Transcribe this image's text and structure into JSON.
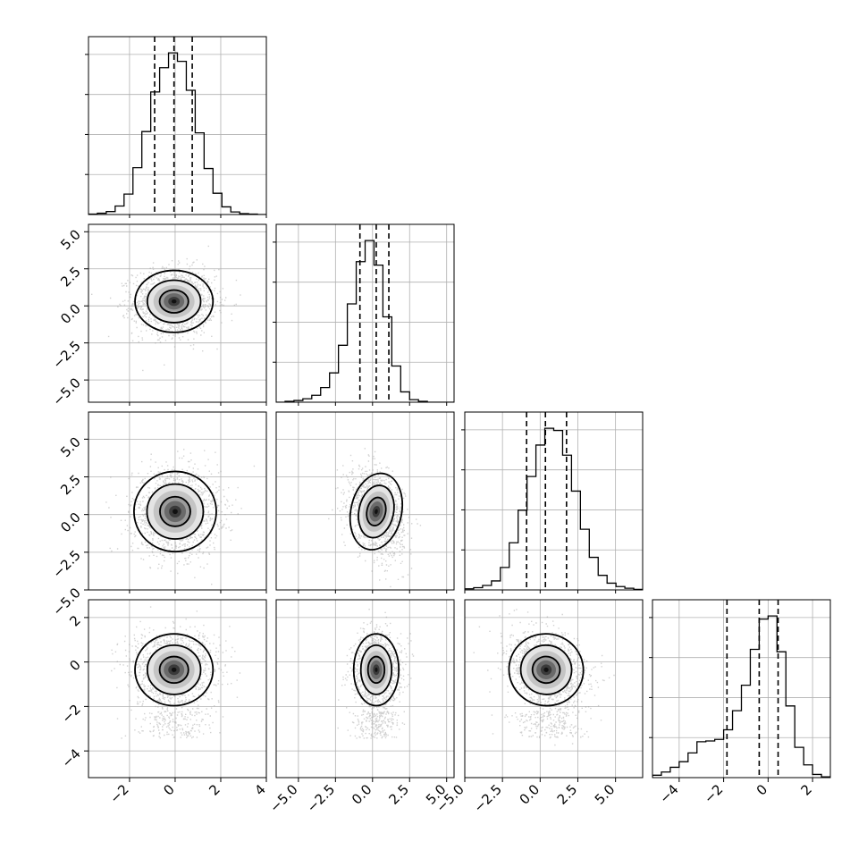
{
  "chart_data": {
    "type": "corner",
    "n_params": 4,
    "ranges": [
      [
        -3.8,
        4.0
      ],
      [
        -6.5,
        5.5
      ],
      [
        -5.0,
        6.8
      ],
      [
        -5.2,
        2.8
      ]
    ],
    "ticks": [
      {
        "values": [
          -2,
          0,
          2,
          4
        ],
        "labels": [
          "−2",
          "0",
          "2",
          "4"
        ]
      },
      {
        "values": [
          -5,
          -2.5,
          0,
          2.5,
          5
        ],
        "labels": [
          "−5.0",
          "−2.5",
          "0.0",
          "2.5",
          "5.0"
        ]
      },
      {
        "values": [
          -5,
          -2.5,
          0,
          2.5,
          5
        ],
        "labels": [
          "−5.0",
          "−2.5",
          "0.0",
          "2.5",
          "5.0"
        ]
      },
      {
        "values": [
          -4,
          -2,
          0,
          2
        ],
        "labels": [
          "−4",
          "−2",
          "0",
          "2"
        ]
      }
    ],
    "quantiles": [
      [
        -0.9,
        -0.05,
        0.75
      ],
      [
        -0.85,
        0.25,
        1.1
      ],
      [
        -0.9,
        0.35,
        1.75
      ],
      [
        -1.85,
        -0.4,
        0.45
      ]
    ],
    "histograms": [
      {
        "edges_from": -3.8,
        "edges_to": 4.0,
        "counts": [
          1,
          3,
          7,
          20,
          48,
          110,
          195,
          288,
          345,
          380,
          360,
          292,
          192,
          108,
          50,
          18,
          6,
          2,
          1,
          0
        ]
      },
      {
        "edges_from": -6.5,
        "edges_to": 5.5,
        "counts": [
          0,
          2,
          4,
          8,
          16,
          34,
          68,
          132,
          228,
          326,
          375,
          318,
          198,
          84,
          24,
          6,
          2,
          0,
          0,
          0
        ]
      },
      {
        "edges_from": -5.0,
        "edges_to": 6.8,
        "counts": [
          2,
          4,
          8,
          16,
          40,
          84,
          142,
          202,
          258,
          288,
          284,
          240,
          176,
          108,
          58,
          26,
          12,
          6,
          3,
          1
        ]
      },
      {
        "edges_from": -5.2,
        "edges_to": 2.8,
        "counts": [
          6,
          14,
          26,
          40,
          62,
          90,
          92,
          96,
          120,
          168,
          232,
          322,
          398,
          406,
          316,
          180,
          76,
          32,
          8,
          2
        ]
      }
    ],
    "pairs": [
      {
        "row": 1,
        "col": 0,
        "mean": [
          -0.05,
          0.3
        ],
        "sd": [
          0.9,
          1.1
        ],
        "rho": 0.0
      },
      {
        "row": 2,
        "col": 0,
        "mean": [
          0.0,
          0.2
        ],
        "sd": [
          0.95,
          1.4
        ],
        "rho": 0.0
      },
      {
        "row": 2,
        "col": 1,
        "mean": [
          0.25,
          0.2
        ],
        "sd": [
          0.9,
          1.35
        ],
        "rho": -0.3
      },
      {
        "row": 3,
        "col": 0,
        "mean": [
          -0.05,
          -0.35
        ],
        "sd": [
          0.9,
          0.85
        ],
        "rho": 0.0
      },
      {
        "row": 3,
        "col": 1,
        "mean": [
          0.25,
          -0.35
        ],
        "sd": [
          0.8,
          0.85
        ],
        "rho": 0.0
      },
      {
        "row": 3,
        "col": 2,
        "mean": [
          0.4,
          -0.35
        ],
        "sd": [
          1.3,
          0.85
        ],
        "rho": -0.25
      }
    ],
    "grid": true,
    "xlabel": "",
    "ylabel": "",
    "title": ""
  }
}
